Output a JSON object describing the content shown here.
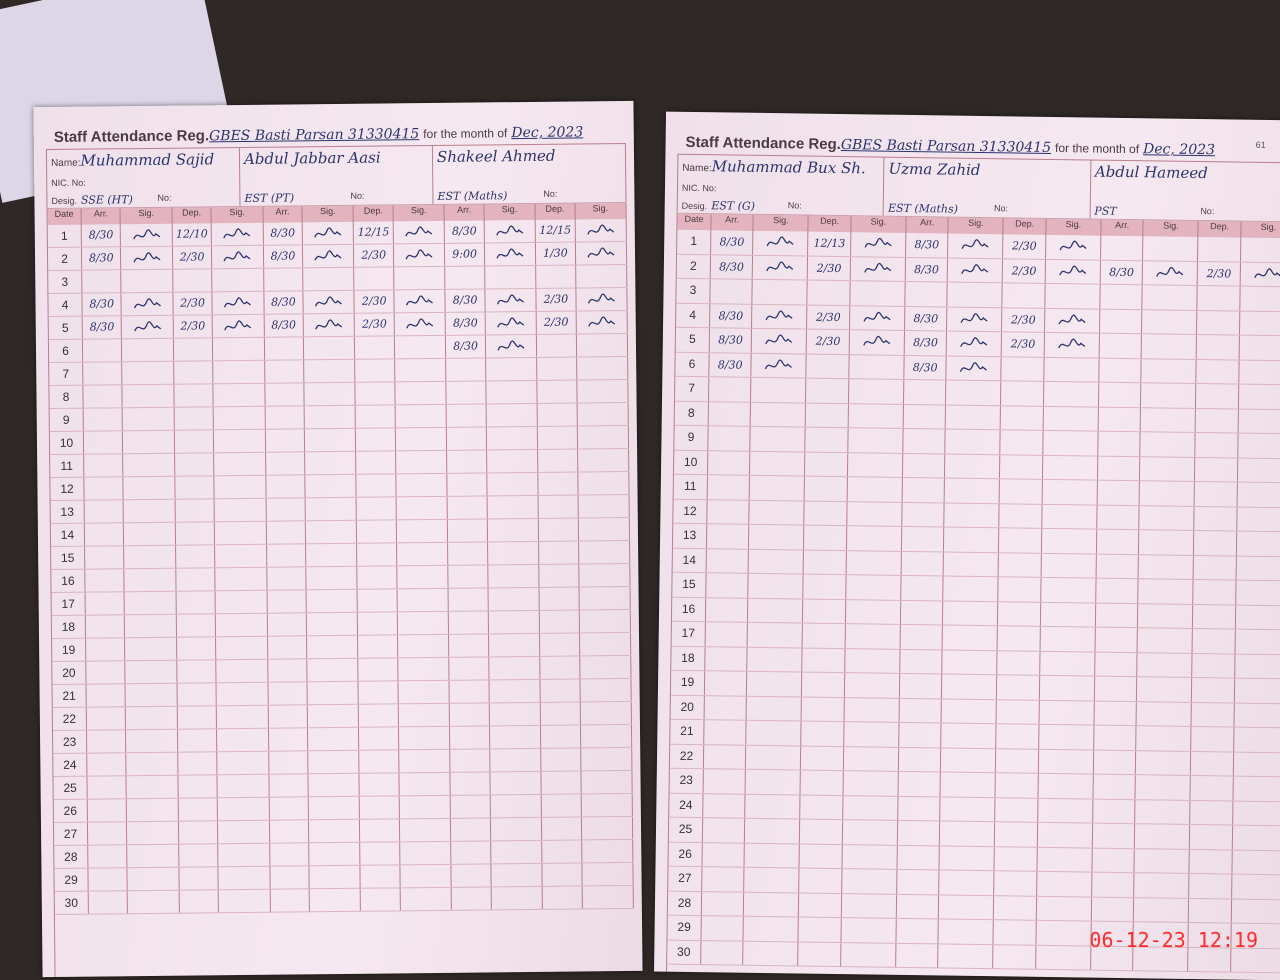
{
  "register": {
    "title": "Staff Attendance Reg.",
    "school": "GBES Basti Parsan 31330415",
    "month_label": "for the month of",
    "month": "Dec, 2023",
    "name_label": "Name:",
    "nic_label": "NIC. No:",
    "desig_label": "Desig.",
    "no_label": "No:",
    "columns": [
      "Date",
      "Arr.",
      "Sig.",
      "Dep.",
      "Sig."
    ]
  },
  "pages": [
    {
      "page_number": "",
      "teachers": [
        {
          "name": "Muhammad Sajid",
          "desig": "SSE (HT)",
          "entries": {
            "1": [
              "8/30",
              "12/10"
            ],
            "2": [
              "8/30",
              "2/30"
            ],
            "4": [
              "8/30",
              "2/30"
            ],
            "5": [
              "8/30",
              "2/30"
            ]
          }
        },
        {
          "name": "Abdul Jabbar Aasi",
          "desig": "EST (PT)",
          "entries": {
            "1": [
              "8/30",
              "12/15"
            ],
            "2": [
              "8/30",
              "2/30"
            ],
            "4": [
              "8/30",
              "2/30"
            ],
            "5": [
              "8/30",
              "2/30"
            ]
          }
        },
        {
          "name": "Shakeel Ahmed",
          "desig": "EST (Maths)",
          "entries": {
            "1": [
              "8/30",
              "12/15"
            ],
            "2": [
              "9:00",
              "1/30"
            ],
            "4": [
              "8/30",
              "2/30"
            ],
            "5": [
              "8/30",
              "2/30"
            ],
            "6": [
              "8/30",
              ""
            ]
          }
        }
      ]
    },
    {
      "page_number": "61",
      "teachers": [
        {
          "name": "Muhammad Bux Sh.",
          "desig": "EST (G)",
          "entries": {
            "1": [
              "8/30",
              "12/13"
            ],
            "2": [
              "8/30",
              "2/30"
            ],
            "4": [
              "8/30",
              "2/30"
            ],
            "5": [
              "8/30",
              "2/30"
            ],
            "6": [
              "8/30",
              ""
            ]
          }
        },
        {
          "name": "Uzma Zahid",
          "desig": "EST (Maths)",
          "entries": {
            "1": [
              "8/30",
              "2/30"
            ],
            "2": [
              "8/30",
              "2/30"
            ],
            "4": [
              "8/30",
              "2/30"
            ],
            "5": [
              "8/30",
              "2/30"
            ],
            "6": [
              "8/30",
              ""
            ]
          }
        },
        {
          "name": "Abdul Hameed",
          "desig": "PST",
          "entries": {
            "2": [
              "8/30",
              "2/30"
            ]
          }
        }
      ]
    }
  ],
  "days": 30,
  "camera_timestamp": "06-12-23  12:19",
  "colors": {
    "ink": "#2a3570",
    "ruling": "#b77f8e",
    "header_band": "#e3b3bf",
    "timestamp": "#ff2a2a"
  }
}
